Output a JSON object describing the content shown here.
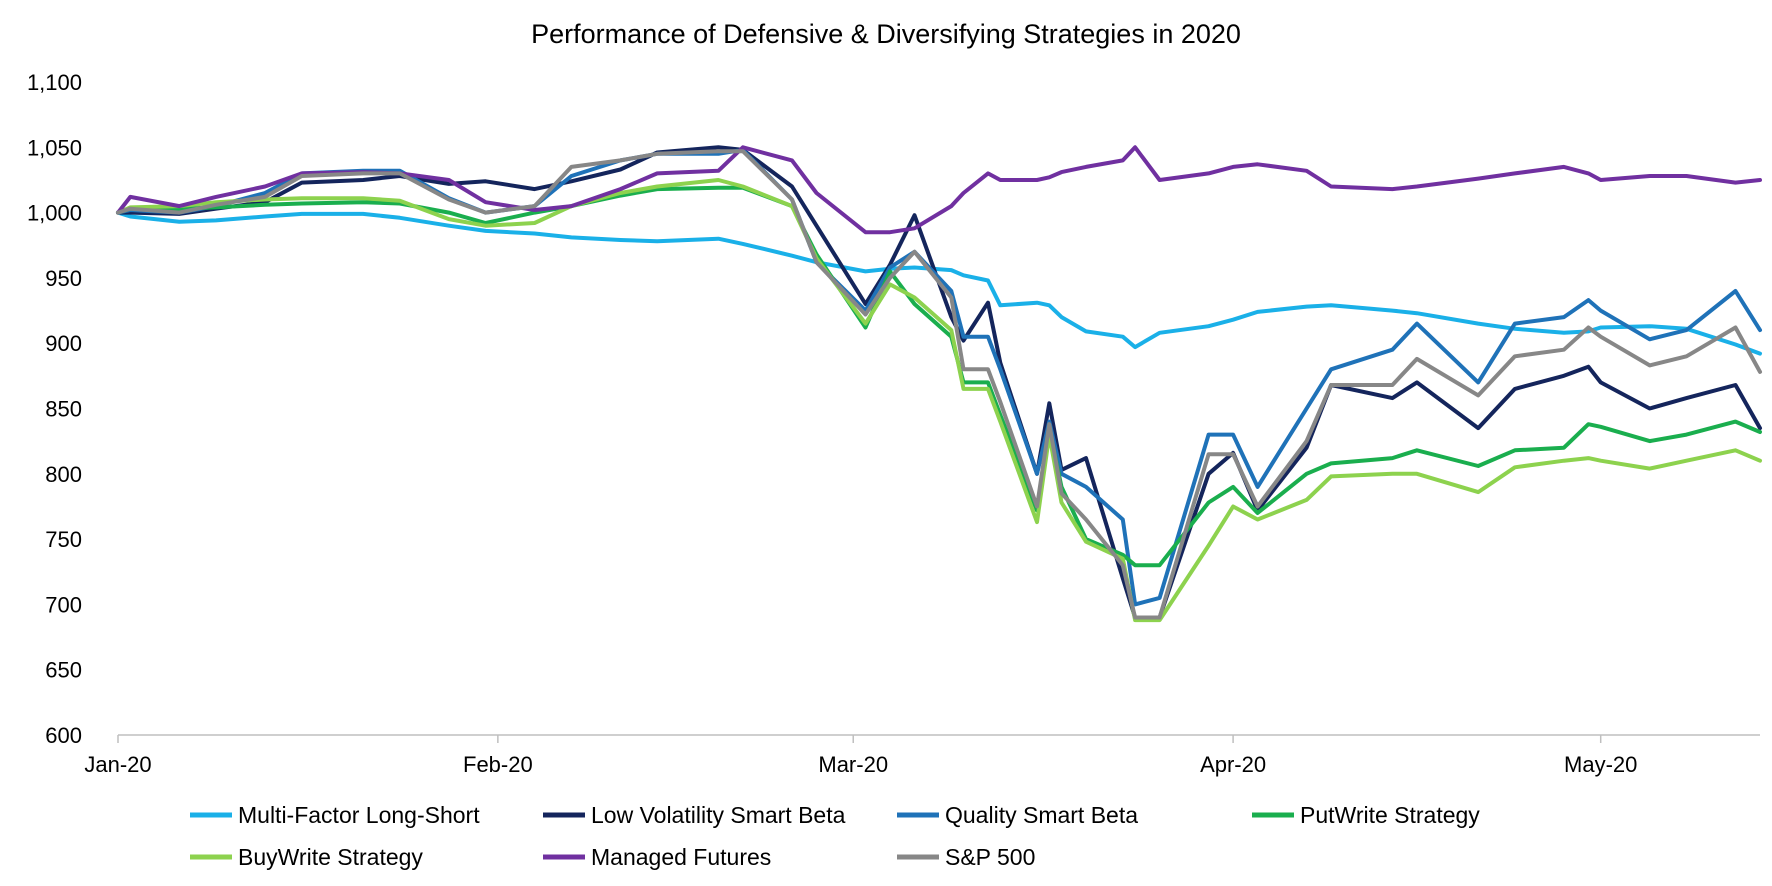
{
  "chart_data": {
    "type": "line",
    "title": "Performance of Defensive & Diversifying Strategies in 2020",
    "xlabel": "",
    "ylabel": "",
    "x_tick_labels": [
      "Jan-20",
      "Feb-20",
      "Mar-20",
      "Apr-20",
      "May-20"
    ],
    "x_tick_dates": [
      "2020-01-01",
      "2020-02-01",
      "2020-03-01",
      "2020-04-01",
      "2020-05-01"
    ],
    "xlim": [
      "2020-01-01",
      "2020-05-14"
    ],
    "ylim": [
      600,
      1100
    ],
    "y_ticks": [
      600,
      650,
      700,
      750,
      800,
      850,
      900,
      950,
      1000,
      1050,
      1100
    ],
    "y_tick_labels": [
      "600",
      "650",
      "700",
      "750",
      "800",
      "850",
      "900",
      "950",
      "1,000",
      "1,050",
      "1,100"
    ],
    "grid": false,
    "legend_position": "bottom",
    "x": [
      "2020-01-01",
      "2020-01-02",
      "2020-01-06",
      "2020-01-09",
      "2020-01-13",
      "2020-01-16",
      "2020-01-21",
      "2020-01-24",
      "2020-01-28",
      "2020-01-31",
      "2020-02-04",
      "2020-02-07",
      "2020-02-11",
      "2020-02-14",
      "2020-02-19",
      "2020-02-21",
      "2020-02-25",
      "2020-02-27",
      "2020-03-02",
      "2020-03-04",
      "2020-03-06",
      "2020-03-09",
      "2020-03-10",
      "2020-03-12",
      "2020-03-13",
      "2020-03-16",
      "2020-03-17",
      "2020-03-18",
      "2020-03-20",
      "2020-03-23",
      "2020-03-24",
      "2020-03-26",
      "2020-03-30",
      "2020-04-01",
      "2020-04-03",
      "2020-04-07",
      "2020-04-09",
      "2020-04-14",
      "2020-04-16",
      "2020-04-21",
      "2020-04-24",
      "2020-04-28",
      "2020-04-30",
      "2020-05-01",
      "2020-05-05",
      "2020-05-08",
      "2020-05-12",
      "2020-05-14"
    ],
    "series": [
      {
        "name": "Multi-Factor Long-Short",
        "color": "#1ab0e8",
        "values": [
          1000,
          997,
          993,
          994,
          997,
          999,
          999,
          996,
          990,
          986,
          984,
          981,
          979,
          978,
          980,
          976,
          967,
          962,
          955,
          957,
          958,
          956,
          952,
          948,
          929,
          931,
          929,
          920,
          909,
          905,
          897,
          908,
          913,
          918,
          924,
          928,
          929,
          925,
          923,
          915,
          911,
          908,
          909,
          912,
          913,
          911,
          899,
          892
        ]
      },
      {
        "name": "Low Volatility Smart Beta",
        "color": "#14255c",
        "values": [
          1000,
          1000,
          999,
          1003,
          1008,
          1023,
          1025,
          1028,
          1022,
          1024,
          1018,
          1024,
          1033,
          1046,
          1050,
          1048,
          1020,
          990,
          930,
          960,
          998,
          920,
          902,
          931,
          885,
          800,
          854,
          803,
          812,
          720,
          690,
          690,
          800,
          816,
          772,
          820,
          868,
          858,
          870,
          835,
          865,
          875,
          882,
          870,
          850,
          858,
          868,
          835
        ]
      },
      {
        "name": "Quality Smart Beta",
        "color": "#1f72b8",
        "values": [
          1000,
          1002,
          1000,
          1005,
          1015,
          1030,
          1032,
          1032,
          1011,
          1000,
          1005,
          1028,
          1040,
          1045,
          1045,
          1048,
          1010,
          962,
          925,
          958,
          970,
          940,
          905,
          905,
          880,
          800,
          840,
          800,
          790,
          765,
          700,
          705,
          830,
          830,
          790,
          850,
          880,
          895,
          915,
          870,
          915,
          920,
          933,
          925,
          903,
          910,
          940,
          910
        ]
      },
      {
        "name": "PutWrite Strategy",
        "color": "#1aae4e",
        "values": [
          1000,
          1003,
          1003,
          1004,
          1006,
          1007,
          1008,
          1007,
          1000,
          992,
          1000,
          1005,
          1013,
          1018,
          1019,
          1019,
          1005,
          968,
          912,
          955,
          930,
          905,
          870,
          870,
          845,
          772,
          835,
          790,
          750,
          738,
          730,
          730,
          778,
          790,
          770,
          800,
          808,
          812,
          818,
          806,
          818,
          820,
          838,
          836,
          825,
          830,
          840,
          832
        ]
      },
      {
        "name": "BuyWrite Strategy",
        "color": "#8dd24e",
        "values": [
          1000,
          1004,
          1005,
          1008,
          1010,
          1011,
          1011,
          1009,
          995,
          990,
          992,
          1005,
          1015,
          1020,
          1025,
          1020,
          1005,
          965,
          915,
          945,
          935,
          910,
          865,
          865,
          840,
          763,
          830,
          778,
          748,
          735,
          688,
          688,
          745,
          775,
          765,
          780,
          798,
          800,
          800,
          786,
          805,
          810,
          812,
          810,
          804,
          810,
          818,
          810
        ]
      },
      {
        "name": "Managed Futures",
        "color": "#7030a0",
        "values": [
          1000,
          1012,
          1005,
          1012,
          1020,
          1030,
          1031,
          1030,
          1025,
          1008,
          1002,
          1005,
          1018,
          1030,
          1032,
          1050,
          1040,
          1015,
          985,
          985,
          988,
          1005,
          1015,
          1030,
          1025,
          1025,
          1027,
          1031,
          1035,
          1040,
          1050,
          1025,
          1030,
          1035,
          1037,
          1032,
          1020,
          1018,
          1020,
          1026,
          1030,
          1035,
          1030,
          1025,
          1028,
          1028,
          1023,
          1025
        ]
      },
      {
        "name": "S&P 500",
        "color": "#878787",
        "values": [
          1000,
          1003,
          1000,
          1006,
          1012,
          1028,
          1030,
          1030,
          1010,
          1000,
          1005,
          1035,
          1040,
          1045,
          1047,
          1047,
          1010,
          962,
          922,
          950,
          970,
          935,
          880,
          880,
          855,
          775,
          838,
          785,
          765,
          730,
          690,
          690,
          815,
          815,
          775,
          825,
          868,
          868,
          888,
          860,
          890,
          895,
          912,
          905,
          883,
          890,
          912,
          878
        ]
      }
    ]
  }
}
